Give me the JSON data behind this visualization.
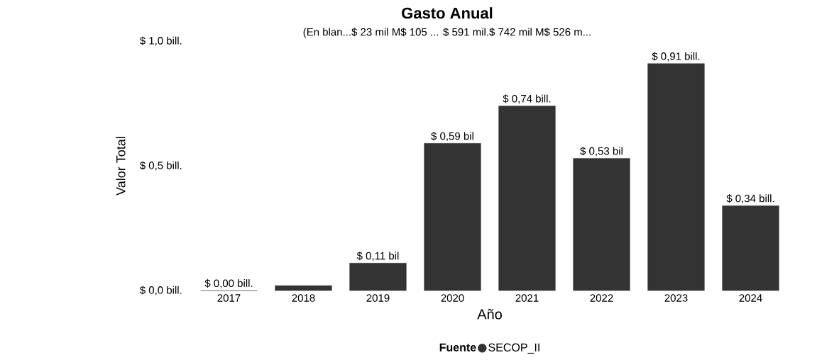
{
  "chart_data": {
    "type": "bar",
    "title": "Gasto Anual",
    "xlabel": "Año",
    "ylabel": "Valor Total",
    "legend_title": "Fuente",
    "annotations": [
      "(En blan...$ 23 mil M$ 105 ... $ 591 mil.$ 742 mil M$ 526 m..."
    ],
    "categories": [
      "2017",
      "2018",
      "2019",
      "2020",
      "2021",
      "2022",
      "2023",
      "2024"
    ],
    "series": [
      {
        "name": "SECOP_II",
        "color": "#333333",
        "values": [
          0.0,
          0.02,
          0.11,
          0.59,
          0.74,
          0.53,
          0.91,
          0.34
        ],
        "value_labels": [
          "$ 0,00 bill.",
          null,
          "$ 0,11 bil",
          "$ 0,59 bil",
          "$ 0,74 bill.",
          "$ 0,53 bil",
          "$ 0,91 bill.",
          "$ 0,34 bill."
        ]
      }
    ],
    "ylim": [
      0,
      1.0
    ],
    "yticks": [
      {
        "value": 0,
        "label": "$ 0,0 bill."
      },
      {
        "value": 0.5,
        "label": "$ 0,5 bill."
      },
      {
        "value": 1.0,
        "label": "$ 1,0 bill."
      }
    ],
    "legend": "bottom",
    "grid": false
  }
}
